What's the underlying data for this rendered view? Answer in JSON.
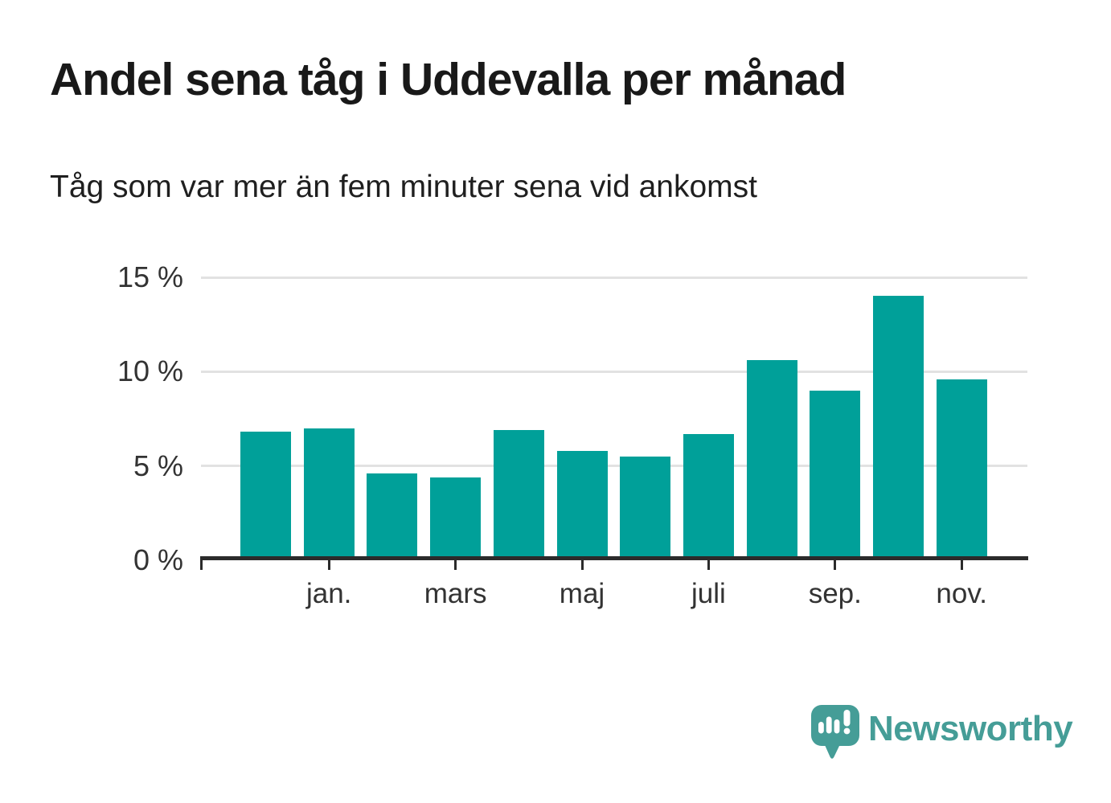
{
  "title": "Andel sena tåg i Uddevalla per månad",
  "subtitle": "Tåg som var mer än fem minuter sena vid ankomst",
  "footer": {
    "brand": "Newsworthy",
    "logo_icon": "speech-bubble-bar-chart-icon"
  },
  "colors": {
    "bar": "#00a099",
    "grid": "#e2e2e2",
    "axis": "#2b2b2b",
    "tick_text": "#333333",
    "title_text": "#191919",
    "brand": "#459d97",
    "background": "#ffffff"
  },
  "chart_data": {
    "type": "bar",
    "title": "Andel sena tåg i Uddevalla per månad",
    "subtitle": "Tåg som var mer än fem minuter sena vid ankomst",
    "values": [
      6.8,
      7.0,
      4.6,
      4.4,
      6.9,
      5.8,
      5.5,
      6.7,
      10.6,
      9.0,
      14.0,
      9.6
    ],
    "x_tick_labels": [
      "jan.",
      "mars",
      "maj",
      "juli",
      "sep.",
      "nov."
    ],
    "x_tick_bar_indices": [
      1,
      3,
      5,
      7,
      9,
      11
    ],
    "y_ticks": [
      {
        "label": "0 %",
        "value": 0
      },
      {
        "label": "5 %",
        "value": 5
      },
      {
        "label": "10 %",
        "value": 10
      },
      {
        "label": "15 %",
        "value": 15
      }
    ],
    "ylim": [
      0,
      15
    ],
    "grid": "horizontal-only",
    "legend": "none",
    "unit": "%"
  }
}
